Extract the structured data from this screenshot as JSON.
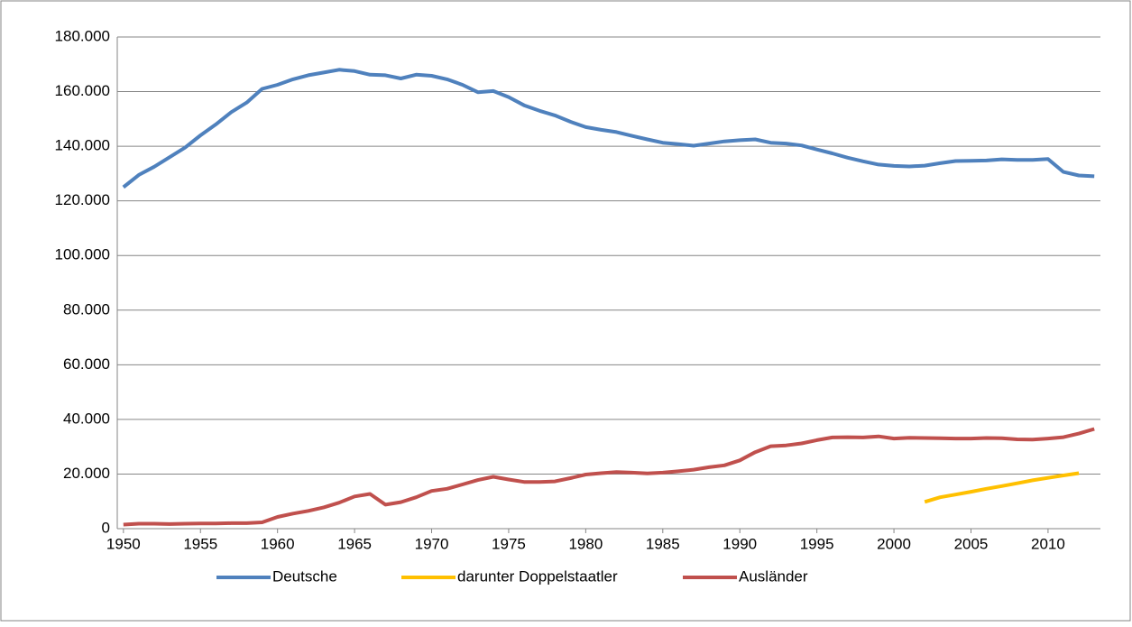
{
  "chart_data": {
    "type": "line",
    "x": [
      1950,
      1951,
      1952,
      1953,
      1954,
      1955,
      1956,
      1957,
      1958,
      1959,
      1960,
      1961,
      1962,
      1963,
      1964,
      1965,
      1966,
      1967,
      1968,
      1969,
      1970,
      1971,
      1972,
      1973,
      1974,
      1975,
      1976,
      1977,
      1978,
      1979,
      1980,
      1981,
      1982,
      1983,
      1984,
      1985,
      1986,
      1987,
      1988,
      1989,
      1990,
      1991,
      1992,
      1993,
      1994,
      1995,
      1996,
      1997,
      1998,
      1999,
      2000,
      2001,
      2002,
      2003,
      2004,
      2005,
      2006,
      2007,
      2008,
      2009,
      2010,
      2011,
      2012,
      2013
    ],
    "series": [
      {
        "name": "Deutsche",
        "color": "#4f81bd",
        "values": [
          125000,
          129500,
          132500,
          136000,
          139500,
          144000,
          148000,
          152500,
          156000,
          161000,
          162500,
          164500,
          166000,
          167000,
          168000,
          167500,
          166200,
          166000,
          164800,
          166200,
          165800,
          164500,
          162500,
          159800,
          160200,
          158000,
          155000,
          153000,
          151300,
          149000,
          147000,
          146000,
          145200,
          143800,
          142500,
          141300,
          140800,
          140200,
          141000,
          141800,
          142200,
          142500,
          141300,
          141000,
          140300,
          138800,
          137400,
          135800,
          134500,
          133300,
          132800,
          132600,
          132900,
          133800,
          134600,
          134700,
          134800,
          135200,
          135000,
          135000,
          135300,
          130600,
          129300,
          129000
        ]
      },
      {
        "name": "darunter Doppelstaatler",
        "color": "#ffc000",
        "values": [
          null,
          null,
          null,
          null,
          null,
          null,
          null,
          null,
          null,
          null,
          null,
          null,
          null,
          null,
          null,
          null,
          null,
          null,
          null,
          null,
          null,
          null,
          null,
          null,
          null,
          null,
          null,
          null,
          null,
          null,
          null,
          null,
          null,
          null,
          null,
          null,
          null,
          null,
          null,
          null,
          null,
          null,
          null,
          null,
          null,
          null,
          null,
          null,
          null,
          null,
          null,
          null,
          9800,
          11500,
          12500,
          13500,
          14600,
          15600,
          16600,
          17700,
          18600,
          19500,
          20300,
          null
        ]
      },
      {
        "name": "Ausländer",
        "color": "#c0504d",
        "values": [
          1500,
          1800,
          1800,
          1700,
          1800,
          1900,
          1900,
          2000,
          2000,
          2300,
          4300,
          5500,
          6500,
          7800,
          9500,
          11800,
          12700,
          8800,
          9700,
          11500,
          13800,
          14600,
          16200,
          17800,
          19000,
          18000,
          17100,
          17100,
          17300,
          18500,
          19800,
          20300,
          20700,
          20500,
          20200,
          20500,
          21000,
          21600,
          22500,
          23200,
          25000,
          28000,
          30200,
          30500,
          31200,
          32400,
          33400,
          33500,
          33400,
          33800,
          33000,
          33300,
          33200,
          33100,
          33000,
          33000,
          33200,
          33100,
          32700,
          32600,
          33000,
          33500,
          34800,
          36500
        ]
      }
    ],
    "xlim": [
      1949.6,
      2013.4
    ],
    "xticks": [
      1950,
      1955,
      1960,
      1965,
      1970,
      1975,
      1980,
      1985,
      1990,
      1995,
      2000,
      2005,
      2010
    ],
    "ylim": [
      0,
      180000
    ],
    "yticks": [
      0,
      {
        "value": 20000,
        "label": "20.000"
      },
      {
        "value": 40000,
        "label": "40.000"
      },
      {
        "value": 60000,
        "label": "60.000"
      },
      {
        "value": 80000,
        "label": "80.000"
      },
      {
        "value": 100000,
        "label": "100.000"
      },
      {
        "value": 120000,
        "label": "120.000"
      },
      {
        "value": 140000,
        "label": "140.000"
      },
      {
        "value": 160000,
        "label": "160.000"
      },
      {
        "value": 180000,
        "label": "180.000"
      }
    ],
    "grid": true,
    "legend": "bottom"
  }
}
